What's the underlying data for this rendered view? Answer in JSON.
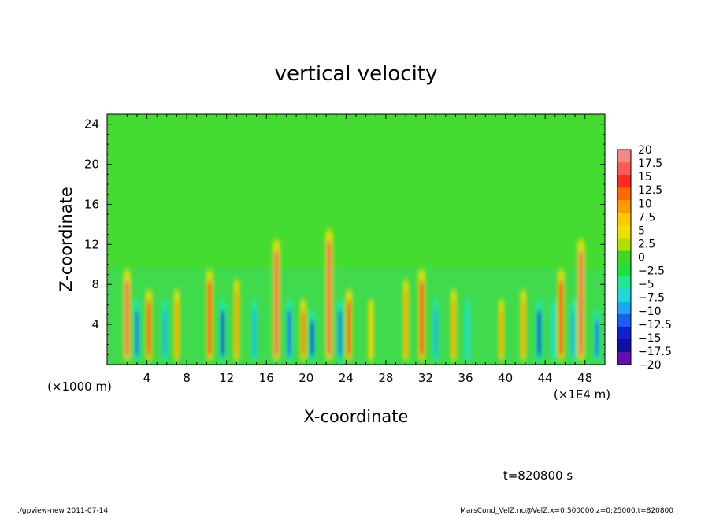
{
  "chart_data": {
    "type": "heatmap",
    "title": "vertical velocity",
    "xlabel": "X-coordinate",
    "ylabel": "Z-coordinate",
    "x_unit_label": "(×1E4 m)",
    "y_unit_label": "(×1000 m)",
    "xlim": [
      0,
      50
    ],
    "ylim": [
      0,
      25
    ],
    "x_ticks": [
      "4",
      "8",
      "12",
      "16",
      "20",
      "24",
      "28",
      "32",
      "36",
      "40",
      "44",
      "48"
    ],
    "y_ticks": [
      "4",
      "8",
      "12",
      "16",
      "20",
      "24"
    ],
    "colorbar": {
      "labels": [
        "20",
        "17.5",
        "15",
        "12.5",
        "10",
        "7.5",
        "5",
        "2.5",
        "0",
        "−2.5",
        "−5",
        "−7.5",
        "−10",
        "−12.5",
        "−15",
        "−17.5",
        "−20"
      ],
      "colors": [
        "#f08a8a",
        "#ff5a5a",
        "#ff2a1a",
        "#ff6a00",
        "#ff9a00",
        "#ffc800",
        "#f0e000",
        "#b0e000",
        "#40d820",
        "#20e040",
        "#20e890",
        "#20d8d8",
        "#1aa8f0",
        "#1a60f0",
        "#1020d0",
        "#1010a0",
        "#6010b0"
      ]
    },
    "features": [
      {
        "x": 2.0,
        "z_top": 9,
        "value": 17
      },
      {
        "x": 3.0,
        "z_top": 6,
        "value": -12
      },
      {
        "x": 4.2,
        "z_top": 7,
        "value": 14
      },
      {
        "x": 5.8,
        "z_top": 6,
        "value": -10
      },
      {
        "x": 7.0,
        "z_top": 7,
        "value": 10
      },
      {
        "x": 10.3,
        "z_top": 9,
        "value": 16
      },
      {
        "x": 11.6,
        "z_top": 6,
        "value": -14
      },
      {
        "x": 13.0,
        "z_top": 8,
        "value": 10
      },
      {
        "x": 14.8,
        "z_top": 6,
        "value": -9
      },
      {
        "x": 17.0,
        "z_top": 12,
        "value": 18
      },
      {
        "x": 18.3,
        "z_top": 6,
        "value": -13
      },
      {
        "x": 19.7,
        "z_top": 6,
        "value": 12
      },
      {
        "x": 20.6,
        "z_top": 5,
        "value": -15
      },
      {
        "x": 22.3,
        "z_top": 13,
        "value": 18
      },
      {
        "x": 23.4,
        "z_top": 6,
        "value": -12
      },
      {
        "x": 24.3,
        "z_top": 7,
        "value": 14
      },
      {
        "x": 26.5,
        "z_top": 6,
        "value": 8
      },
      {
        "x": 30.0,
        "z_top": 8,
        "value": 10
      },
      {
        "x": 31.6,
        "z_top": 9,
        "value": 16
      },
      {
        "x": 33.0,
        "z_top": 6,
        "value": -9
      },
      {
        "x": 34.8,
        "z_top": 7,
        "value": 11
      },
      {
        "x": 36.2,
        "z_top": 6,
        "value": -8
      },
      {
        "x": 39.6,
        "z_top": 6,
        "value": 9
      },
      {
        "x": 41.8,
        "z_top": 7,
        "value": 10
      },
      {
        "x": 43.4,
        "z_top": 6,
        "value": -15
      },
      {
        "x": 44.8,
        "z_top": 6,
        "value": -8
      },
      {
        "x": 45.6,
        "z_top": 9,
        "value": 15
      },
      {
        "x": 46.8,
        "z_top": 6,
        "value": -10
      },
      {
        "x": 47.6,
        "z_top": 12,
        "value": 18
      },
      {
        "x": 49.2,
        "z_top": 5,
        "value": -12
      }
    ]
  },
  "annotations": {
    "time": "t=820800 s",
    "footer_left": "./gpview-new   2011-07-14",
    "footer_right": "MarsCond_VelZ.nc@VelZ,x=0:500000,z=0:25000,t=820800"
  }
}
